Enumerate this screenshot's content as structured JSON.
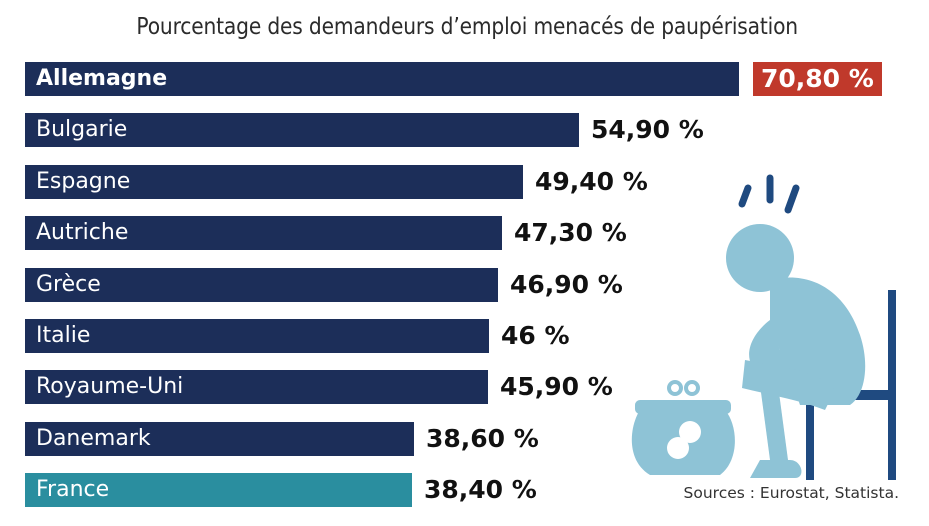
{
  "title": "Pourcentage des demandeurs d’emploi menacés de paupérisation",
  "source": "Sources : Eurostat, Statista.",
  "colors": {
    "bar": "#1c2e59",
    "highlight_bar": "#2a8e9f",
    "highlight_value_bg": "#c0392b",
    "illustration": "#8ec3d6",
    "chair": "#1f4a80"
  },
  "illustration_icon": "worried-person-with-purse-icon",
  "chart_data": {
    "type": "bar",
    "orientation": "horizontal",
    "title": "Pourcentage des demandeurs d’emploi menacés de paupérisation",
    "categories": [
      "Allemagne",
      "Bulgarie",
      "Espagne",
      "Autriche",
      "Grèce",
      "Italie",
      "Royaume-Uni",
      "Danemark",
      "France"
    ],
    "values": [
      70.8,
      54.9,
      49.4,
      47.3,
      46.9,
      46,
      45.9,
      38.6,
      38.4
    ],
    "value_labels": [
      "70,80 %",
      "54,90 %",
      "49,40 %",
      "47,30 %",
      "46,90 %",
      "46 %",
      "45,90 %",
      "38,60 %",
      "38,40 %"
    ],
    "highlighted_categories": [
      "Allemagne",
      "France"
    ],
    "xlim": [
      0,
      71
    ],
    "grid": false,
    "legend": "none"
  }
}
